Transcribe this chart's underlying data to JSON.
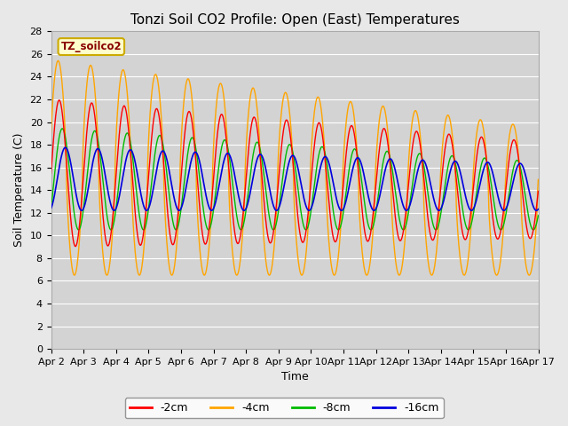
{
  "title": "Tonzi Soil CO2 Profile: Open (East) Temperatures",
  "xlabel": "Time",
  "ylabel": "Soil Temperature (C)",
  "ylim": [
    0,
    28
  ],
  "yticks": [
    0,
    2,
    4,
    6,
    8,
    10,
    12,
    14,
    16,
    18,
    20,
    22,
    24,
    26,
    28
  ],
  "colors": {
    "-2cm": "#ff0000",
    "-4cm": "#ffa500",
    "-8cm": "#00bb00",
    "-16cm": "#0000dd"
  },
  "legend_labels": [
    "-2cm",
    "-4cm",
    "-8cm",
    "-16cm"
  ],
  "legend_colors": [
    "#ff0000",
    "#ffa500",
    "#00bb00",
    "#0000dd"
  ],
  "fig_bg_color": "#e8e8e8",
  "plot_bg_color": "#d3d3d3",
  "grid_color": "#ffffff",
  "title_fontsize": 11,
  "axis_label_fontsize": 9,
  "tick_label_fontsize": 8,
  "legend_box_facecolor": "#ffffcc",
  "legend_box_edgecolor": "#ccaa00",
  "legend_text_color": "#880000",
  "n_days": 15,
  "pts_per_day": 288
}
